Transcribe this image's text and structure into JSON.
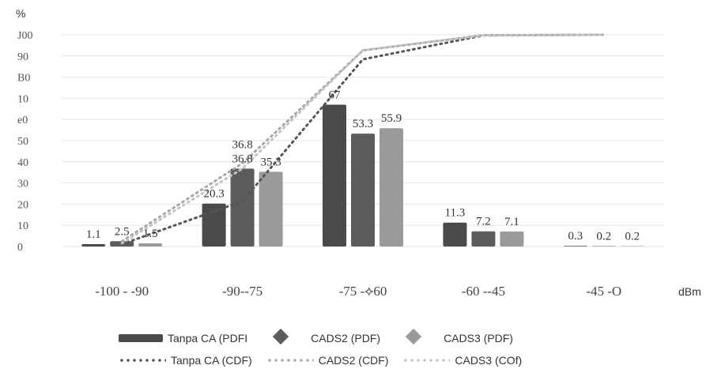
{
  "chart_data": {
    "type": "bar",
    "y_unit": "%",
    "x_unit": "dBm",
    "y_tick_labels": [
      "0",
      "10",
      "20",
      "30",
      "40",
      "50",
      "e0",
      "10",
      "B0",
      "90",
      "J00"
    ],
    "categories": [
      "-100 - -90",
      "-90--75",
      "-75 -⟡60",
      "-60 --45",
      "-45 -O"
    ],
    "series": [
      {
        "name": "Tanpa CA (PDF)",
        "kind": "bar",
        "color": "#4a4a4a",
        "values": [
          1.1,
          20.3,
          67,
          11.3,
          0.3
        ]
      },
      {
        "name": "CADS2 (PDF)",
        "kind": "bar",
        "color": "#5c5c5c",
        "values": [
          2.5,
          36.8,
          53.3,
          7.2,
          0.2
        ]
      },
      {
        "name": "CADS3 (PDF)",
        "kind": "bar",
        "color": "#9a9a9a",
        "values": [
          1.5,
          35.3,
          55.9,
          7.1,
          0.2
        ]
      },
      {
        "name": "Tanpa CA (CDF)",
        "kind": "line",
        "color": "#555555",
        "values": [
          1.1,
          21.4,
          88.4,
          99.7,
          100
        ]
      },
      {
        "name": "CADS2 (CDF)",
        "kind": "line",
        "color": "#a8a8a8",
        "values": [
          2.5,
          39.3,
          92.6,
          99.8,
          100
        ]
      },
      {
        "name": "CADS3 (CDF)",
        "kind": "line",
        "color": "#c4c4c4",
        "values": [
          1.5,
          36.8,
          92.7,
          99.8,
          100
        ]
      }
    ],
    "data_labels": [
      {
        "text": "1.1",
        "series": 0,
        "category": 0
      },
      {
        "text": "2.5",
        "series": 1,
        "category": 0
      },
      {
        "text": "1.5",
        "series": 2,
        "category": 0
      },
      {
        "text": "20.3",
        "series": 0,
        "category": 1
      },
      {
        "text": "36.8",
        "series": 1,
        "category": 1
      },
      {
        "text": "36.8",
        "series": 1,
        "category": 1
      },
      {
        "text": "35.3",
        "series": 2,
        "category": 1
      },
      {
        "text": "67",
        "series": 0,
        "category": 2
      },
      {
        "text": "53.3",
        "series": 1,
        "category": 2
      },
      {
        "text": "55.9",
        "series": 2,
        "category": 2
      },
      {
        "text": "11.3",
        "series": 0,
        "category": 3
      },
      {
        "text": "7.2",
        "series": 1,
        "category": 3
      },
      {
        "text": "7.1",
        "series": 2,
        "category": 3
      },
      {
        "text": "0.3",
        "series": 0,
        "category": 4
      },
      {
        "text": "0.2",
        "series": 1,
        "category": 4
      },
      {
        "text": "0.2",
        "series": 2,
        "category": 4
      }
    ],
    "ylim": [
      0,
      100
    ],
    "grid": true,
    "legend_position": "bottom"
  },
  "legend": {
    "items": [
      {
        "label": "Tanpa CA (PDFI",
        "swatch": "bar",
        "color": "#4a4a4a"
      },
      {
        "label": "CADS2 (PDF)",
        "swatch": "diamond",
        "color": "#5c5c5c"
      },
      {
        "label": "CADS3 (PDF)",
        "swatch": "diamond",
        "color": "#9a9a9a"
      },
      {
        "label": "Tanpa CA (CDF)",
        "swatch": "dots",
        "color": "#555555"
      },
      {
        "label": "CADS2 (CDF)",
        "swatch": "dots",
        "color": "#a8a8a8"
      },
      {
        "label": "CADS3 (COf)",
        "swatch": "dots",
        "color": "#c4c4c4"
      }
    ]
  }
}
